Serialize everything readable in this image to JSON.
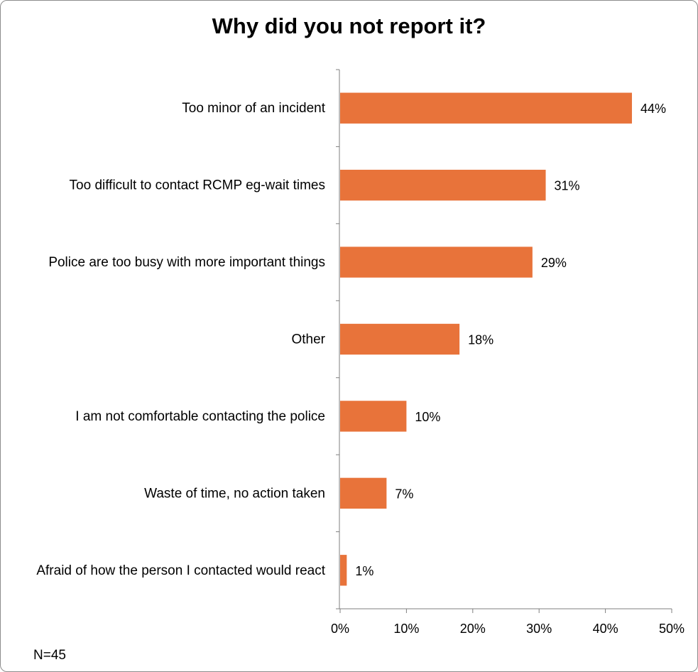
{
  "chart_data": {
    "type": "bar",
    "orientation": "horizontal",
    "title": "Why did you not report it?",
    "categories": [
      "Too minor of an incident",
      "Too difficult to contact RCMP eg-wait times",
      "Police are too busy with more important things",
      "Other",
      "I am not comfortable contacting the police",
      "Waste of time, no action taken",
      "Afraid of how the person I contacted would react"
    ],
    "values": [
      44,
      31,
      29,
      18,
      10,
      7,
      1
    ],
    "value_labels": [
      "44%",
      "31%",
      "29%",
      "18%",
      "10%",
      "7%",
      "1%"
    ],
    "xlim": [
      0,
      50
    ],
    "x_ticks": [
      0,
      10,
      20,
      30,
      40,
      50
    ],
    "x_tick_labels": [
      "0%",
      "10%",
      "20%",
      "30%",
      "40%",
      "50%"
    ],
    "bar_color": "#E8733A",
    "grid": false,
    "legend": "none"
  },
  "footnote": "N=45"
}
